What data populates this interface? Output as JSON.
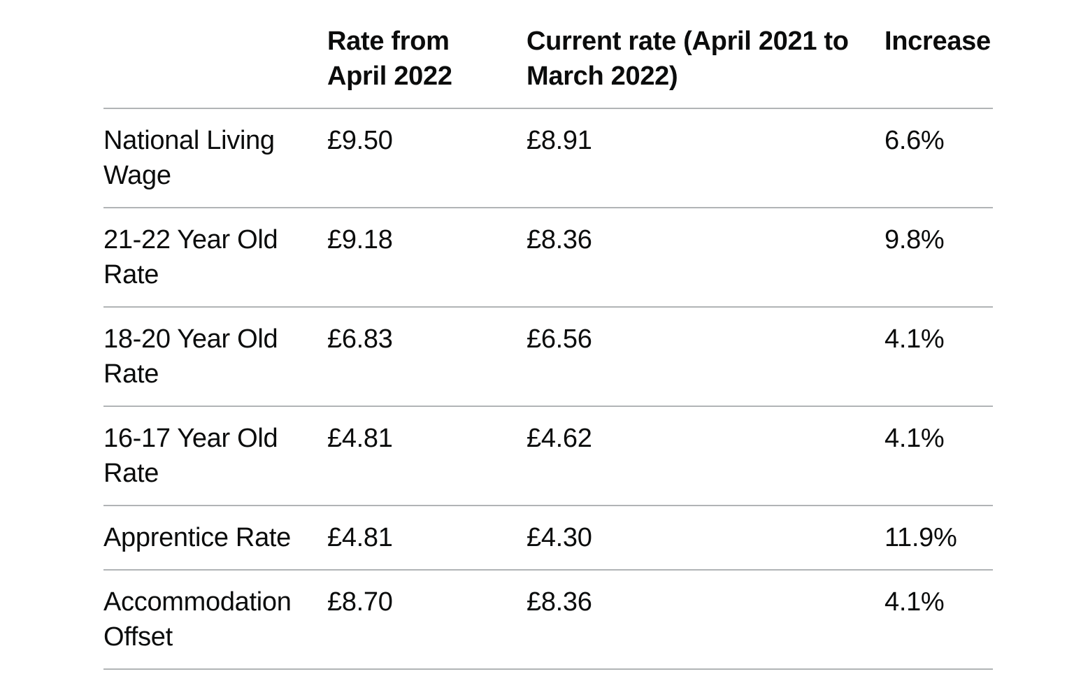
{
  "colors": {
    "background": "#ffffff",
    "text": "#0b0c0c",
    "row_divider": "#b1b4b6"
  },
  "table": {
    "columns": [
      "",
      "Rate from April 2022",
      "Current rate (April 2021 to March 2022)",
      "Increase"
    ],
    "rows": [
      {
        "label": "National Living Wage",
        "rate_from_april_2022": "£9.50",
        "current_rate": "£8.91",
        "increase": "6.6%"
      },
      {
        "label": "21-22 Year Old Rate",
        "rate_from_april_2022": "£9.18",
        "current_rate": "£8.36",
        "increase": "9.8%"
      },
      {
        "label": "18-20 Year Old Rate",
        "rate_from_april_2022": "£6.83",
        "current_rate": "£6.56",
        "increase": "4.1%"
      },
      {
        "label": "16-17 Year Old Rate",
        "rate_from_april_2022": "£4.81",
        "current_rate": "£4.62",
        "increase": "4.1%"
      },
      {
        "label": "Apprentice Rate",
        "rate_from_april_2022": "£4.81",
        "current_rate": "£4.30",
        "increase": "11.9%"
      },
      {
        "label": "Accommodation Offset",
        "rate_from_april_2022": "£8.70",
        "current_rate": "£8.36",
        "increase": "4.1%"
      }
    ]
  }
}
